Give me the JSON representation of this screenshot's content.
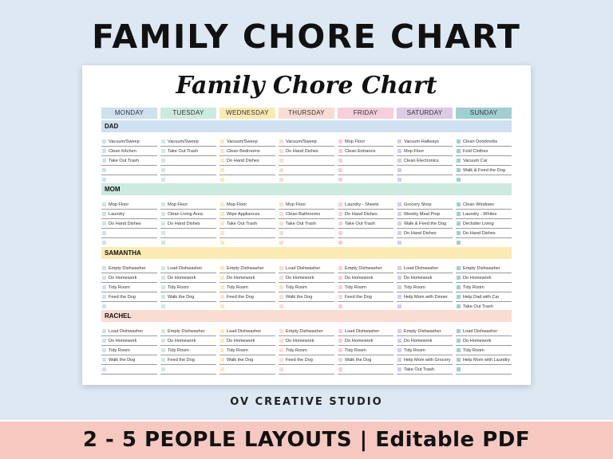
{
  "headline": "FAMILY CHORE CHART",
  "script_title": "Family Chore Chart",
  "studio": "OV CREATIVE STUDIO",
  "banner": "2 - 5 PEOPLE LAYOUTS | Editable PDF",
  "colors": {
    "days": [
      "#cfe0f0",
      "#cdeadf",
      "#fbeab3",
      "#fbdcd3",
      "#f7cfdb",
      "#dccae7",
      "#9fcfd2"
    ],
    "sections": [
      "#cfe0f0",
      "#cdeadf",
      "#fbeab3",
      "#fbdcd3"
    ]
  },
  "days": [
    "MONDAY",
    "TUESDAY",
    "WEDNESDAY",
    "THURSDAY",
    "FRIDAY",
    "SATURDAY",
    "SUNDAY"
  ],
  "people": [
    {
      "name": "DAD",
      "tasks": [
        [
          "Vacuum/Sweep",
          "Clean Kitchen",
          "Take Out Trash",
          "",
          ""
        ],
        [
          "Vacuum/Sweep",
          "Take Out Trash",
          "",
          "",
          ""
        ],
        [
          "Vacuum/Sweep",
          "Clean Bedrooms",
          "Do Hand Dishes",
          "",
          ""
        ],
        [
          "Vacuum/Sweep",
          "Do Hand Dishes",
          "",
          "",
          ""
        ],
        [
          "Mop Floor",
          "Clean Entrance",
          "",
          "",
          ""
        ],
        [
          "Vacuum Hallways",
          "Mop Floor",
          "Clean Electronics",
          "",
          ""
        ],
        [
          "Clean Doorknobs",
          "Fold Clothes",
          "Vacuum Car",
          "Walk & Feed the Dog",
          ""
        ]
      ]
    },
    {
      "name": "MOM",
      "tasks": [
        [
          "Mop Floor",
          "Laundry",
          "Do Hand Dishes",
          "",
          ""
        ],
        [
          "Mop Floor",
          "Clean Living Area",
          "Do Hand Dishes",
          "",
          ""
        ],
        [
          "Mop Floor",
          "Wipe Appliances",
          "Take Out Trash",
          "",
          ""
        ],
        [
          "Mop Floor",
          "Clean Bathrooms",
          "Take Out Trash",
          "",
          ""
        ],
        [
          "Laundry - Sheets",
          "Do Hand Dishes",
          "Take Out Trash",
          "",
          ""
        ],
        [
          "Grocery Shop",
          "Weekly Meal Prep",
          "Walk & Feed the Dog",
          "Do Hand Dishes",
          ""
        ],
        [
          "Clean Windows",
          "Laundry - Whites",
          "Declutter Living",
          "Do Hand Dishes",
          ""
        ]
      ]
    },
    {
      "name": "SAMANTHA",
      "tasks": [
        [
          "Empty Dishwasher",
          "Do Homework",
          "Tidy Room",
          "Feed the Dog",
          ""
        ],
        [
          "Load Dishwasher",
          "Do Homework",
          "Tidy Room",
          "Walk the Dog",
          ""
        ],
        [
          "Empty Dishwasher",
          "Do Homework",
          "Tidy Room",
          "Feed the Dog",
          ""
        ],
        [
          "Load Dishwasher",
          "Do Homework",
          "Tidy Room",
          "Walk the Dog",
          ""
        ],
        [
          "Empty Dishwasher",
          "Do Homework",
          "Tidy Room",
          "Feed the Dog",
          ""
        ],
        [
          "Load Dishwasher",
          "Do Homework",
          "Tidy Room",
          "Help Mom with Dinner",
          ""
        ],
        [
          "Empty Dishwasher",
          "Do Homework",
          "Tidy Room",
          "Help Dad with Car",
          "Take Out Trash"
        ]
      ]
    },
    {
      "name": "RACHEL",
      "tasks": [
        [
          "Load Dishwasher",
          "Do Homework",
          "Tidy Room",
          "Walk the Dog",
          ""
        ],
        [
          "Empty Dishwasher",
          "Do Homework",
          "Tidy Room",
          "Feed the Dog",
          ""
        ],
        [
          "Load Dishwasher",
          "Do Homework",
          "Tidy Room",
          "Walk the Dog",
          ""
        ],
        [
          "Empty Dishwasher",
          "Do Homework",
          "Tidy Room",
          "Feed the Dog",
          ""
        ],
        [
          "Load Dishwasher",
          "Do Homework",
          "Tidy Room",
          "Walk the Dog",
          ""
        ],
        [
          "Empty Dishwasher",
          "Do Homework",
          "Tidy Room",
          "Help Mom with Grocery",
          "Take Out Trash"
        ],
        [
          "Load Dishwasher",
          "Do Homework",
          "Tidy Room",
          "Help Mom with Laundry",
          ""
        ]
      ]
    }
  ]
}
